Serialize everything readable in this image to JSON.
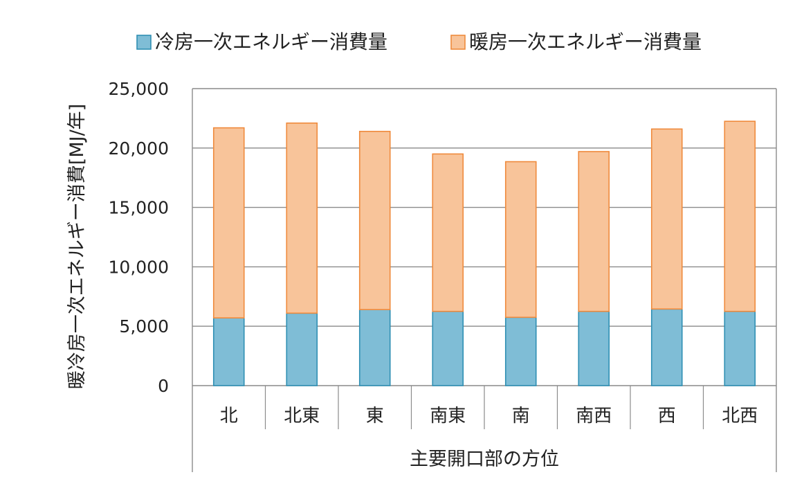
{
  "chart_data": {
    "type": "bar",
    "stacked": true,
    "categories": [
      "北",
      "北東",
      "東",
      "南東",
      "南",
      "南西",
      "西",
      "北西"
    ],
    "series": [
      {
        "name": "冷房一次エネルギー消費量",
        "color": "#7fbdd6",
        "edge": "#2f8fb3",
        "values": [
          5700,
          6100,
          6400,
          6250,
          5750,
          6250,
          6450,
          6250
        ]
      },
      {
        "name": "暖房一次エネルギー消費量",
        "color": "#f8c49a",
        "edge": "#ef8a3c",
        "values": [
          16000,
          16000,
          15000,
          13250,
          13100,
          13450,
          15150,
          16000
        ]
      }
    ],
    "ylim": [
      0,
      25000
    ],
    "yticks": [
      0,
      5000,
      10000,
      15000,
      20000,
      25000
    ],
    "ytick_labels": [
      "0",
      "5,000",
      "10,000",
      "15,000",
      "20,000",
      "25,000"
    ],
    "ylabel": "暖冷房一次エネルギー消費[MJ/年]",
    "xlabel": "主要開口部の方位",
    "legend_position": "top",
    "grid": true
  }
}
